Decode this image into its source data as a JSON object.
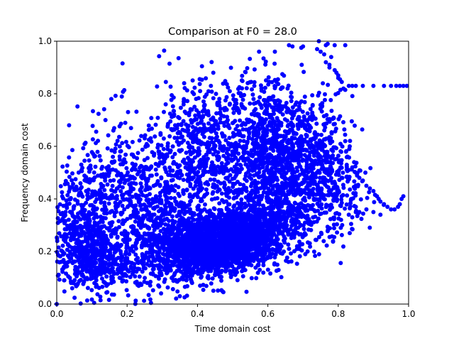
{
  "chart_data": {
    "type": "scatter",
    "title": "Comparison at F0 = 28.0",
    "xlabel": "Time domain cost",
    "ylabel": "Frequency domain cost",
    "xlim": [
      0,
      1
    ],
    "ylim": [
      0,
      1
    ],
    "x_ticks": [
      "0.0",
      "0.2",
      "0.4",
      "0.6",
      "0.8",
      "1.0"
    ],
    "y_ticks": [
      "0.0",
      "0.2",
      "0.4",
      "0.6",
      "0.8",
      "1.0"
    ],
    "grid": false,
    "legend": "none",
    "marker_color": "#0000ff",
    "clusters": [
      {
        "cx": 0.44,
        "cy": 0.22,
        "sx": 0.07,
        "sy": 0.05,
        "n": 1600
      },
      {
        "cx": 0.55,
        "cy": 0.27,
        "sx": 0.06,
        "sy": 0.06,
        "n": 700
      },
      {
        "cx": 0.6,
        "cy": 0.6,
        "sx": 0.05,
        "sy": 0.13,
        "n": 600
      },
      {
        "cx": 0.72,
        "cy": 0.55,
        "sx": 0.06,
        "sy": 0.12,
        "n": 550
      },
      {
        "cx": 0.3,
        "cy": 0.25,
        "sx": 0.1,
        "sy": 0.12,
        "n": 700
      },
      {
        "cx": 0.22,
        "cy": 0.42,
        "sx": 0.08,
        "sy": 0.15,
        "n": 450
      },
      {
        "cx": 0.07,
        "cy": 0.28,
        "sx": 0.05,
        "sy": 0.12,
        "n": 500
      },
      {
        "cx": 0.48,
        "cy": 0.55,
        "sx": 0.08,
        "sy": 0.15,
        "n": 500
      },
      {
        "cx": 0.38,
        "cy": 0.6,
        "sx": 0.06,
        "sy": 0.12,
        "n": 250
      },
      {
        "cx": 0.12,
        "cy": 0.15,
        "sx": 0.06,
        "sy": 0.04,
        "n": 250
      },
      {
        "cx": 0.68,
        "cy": 0.35,
        "sx": 0.07,
        "sy": 0.08,
        "n": 300
      },
      {
        "cx": 0.82,
        "cy": 0.4,
        "sx": 0.04,
        "sy": 0.08,
        "n": 80
      }
    ],
    "points": [
      [
        0.0,
        0.0
      ],
      [
        0.035,
        0.68
      ],
      [
        0.155,
        0.78
      ],
      [
        0.31,
        0.845
      ],
      [
        0.445,
        0.88
      ],
      [
        0.575,
        0.96
      ],
      [
        0.62,
        0.96
      ],
      [
        0.66,
        0.985
      ],
      [
        0.67,
        0.98
      ],
      [
        0.695,
        0.975
      ],
      [
        0.7,
        0.98
      ],
      [
        0.74,
        0.97
      ],
      [
        0.745,
        1.0
      ],
      [
        0.765,
        0.985
      ],
      [
        0.77,
        0.99
      ],
      [
        0.79,
        0.985
      ],
      [
        0.82,
        0.985
      ],
      [
        0.75,
        0.96
      ],
      [
        0.76,
        0.95
      ],
      [
        0.78,
        0.94
      ],
      [
        0.765,
        0.92
      ],
      [
        0.775,
        0.91
      ],
      [
        0.775,
        0.9
      ],
      [
        0.79,
        0.89
      ],
      [
        0.795,
        0.88
      ],
      [
        0.8,
        0.87
      ],
      [
        0.8,
        0.86
      ],
      [
        0.805,
        0.855
      ],
      [
        0.81,
        0.845
      ],
      [
        0.83,
        0.83
      ],
      [
        0.84,
        0.83
      ],
      [
        0.85,
        0.83
      ],
      [
        0.87,
        0.83
      ],
      [
        0.9,
        0.83
      ],
      [
        0.93,
        0.83
      ],
      [
        0.95,
        0.83
      ],
      [
        0.965,
        0.83
      ],
      [
        0.975,
        0.83
      ],
      [
        0.985,
        0.83
      ],
      [
        0.995,
        0.83
      ],
      [
        0.815,
        0.82
      ],
      [
        0.82,
        0.815
      ],
      [
        0.83,
        0.51
      ],
      [
        0.84,
        0.52
      ],
      [
        0.85,
        0.5
      ],
      [
        0.86,
        0.48
      ],
      [
        0.87,
        0.47
      ],
      [
        0.88,
        0.45
      ],
      [
        0.89,
        0.44
      ],
      [
        0.9,
        0.43
      ],
      [
        0.91,
        0.41
      ],
      [
        0.915,
        0.4
      ],
      [
        0.92,
        0.39
      ],
      [
        0.93,
        0.38
      ],
      [
        0.94,
        0.37
      ],
      [
        0.95,
        0.36
      ],
      [
        0.96,
        0.36
      ],
      [
        0.97,
        0.37
      ],
      [
        0.975,
        0.38
      ],
      [
        0.98,
        0.4
      ],
      [
        0.985,
        0.41
      ],
      [
        0.9,
        0.35
      ],
      [
        0.92,
        0.34
      ],
      [
        0.88,
        0.36
      ],
      [
        0.86,
        0.35
      ],
      [
        0.84,
        0.33
      ],
      [
        0.83,
        0.34
      ]
    ]
  }
}
